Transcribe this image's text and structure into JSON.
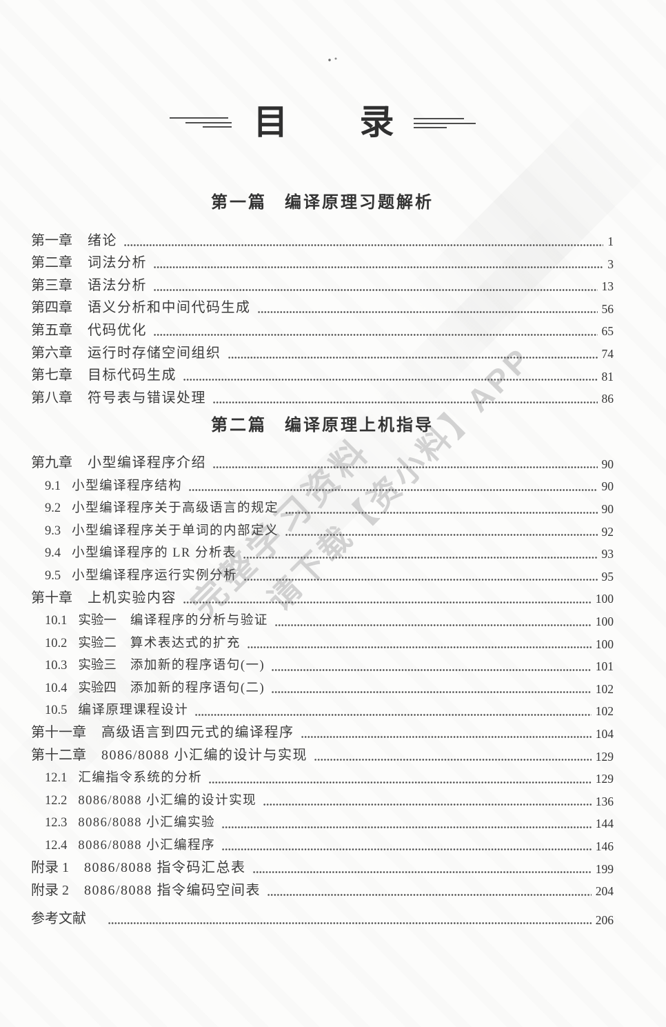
{
  "page": {
    "title_char1": "目",
    "title_char2": "录",
    "background_color": "#fcfcfb",
    "text_color": "#3c3c3c"
  },
  "watermark": {
    "line1": "完整学习资料",
    "line2": "请下载【资小料】APP",
    "color": "#d2d2d2"
  },
  "parts": [
    {
      "part_label": "第一篇",
      "part_title": "编译原理习题解析",
      "entries": [
        {
          "label": "第一章",
          "title": "绪论",
          "page": "1",
          "level": "chapter"
        },
        {
          "label": "第二章",
          "title": "词法分析",
          "page": "3",
          "level": "chapter"
        },
        {
          "label": "第三章",
          "title": "语法分析",
          "page": "13",
          "level": "chapter"
        },
        {
          "label": "第四章",
          "title": "语义分析和中间代码生成",
          "page": "56",
          "level": "chapter"
        },
        {
          "label": "第五章",
          "title": "代码优化",
          "page": "65",
          "level": "chapter"
        },
        {
          "label": "第六章",
          "title": "运行时存储空间组织",
          "page": "74",
          "level": "chapter"
        },
        {
          "label": "第七章",
          "title": "目标代码生成",
          "page": "81",
          "level": "chapter"
        },
        {
          "label": "第八章",
          "title": "符号表与错误处理",
          "page": "86",
          "level": "chapter"
        }
      ]
    },
    {
      "part_label": "第二篇",
      "part_title": "编译原理上机指导",
      "entries": [
        {
          "label": "第九章",
          "title": "小型编译程序介绍",
          "page": "90",
          "level": "chapter"
        },
        {
          "label": "9.1",
          "title": "小型编译程序结构",
          "page": "90",
          "level": "section"
        },
        {
          "label": "9.2",
          "title": "小型编译程序关于高级语言的规定",
          "page": "90",
          "level": "section"
        },
        {
          "label": "9.3",
          "title": "小型编译程序关于单词的内部定义",
          "page": "92",
          "level": "section"
        },
        {
          "label": "9.4",
          "title": "小型编译程序的 LR 分析表",
          "page": "93",
          "level": "section"
        },
        {
          "label": "9.5",
          "title": "小型编译程序运行实例分析",
          "page": "95",
          "level": "section"
        },
        {
          "label": "第十章",
          "title": "上机实验内容",
          "page": "100",
          "level": "chapter"
        },
        {
          "label": "10.1",
          "sublabel": "实验一",
          "title": "编译程序的分析与验证",
          "page": "100",
          "level": "section"
        },
        {
          "label": "10.2",
          "sublabel": "实验二",
          "title": "算术表达式的扩充",
          "page": "100",
          "level": "section"
        },
        {
          "label": "10.3",
          "sublabel": "实验三",
          "title": "添加新的程序语句(一)",
          "page": "101",
          "level": "section"
        },
        {
          "label": "10.4",
          "sublabel": "实验四",
          "title": "添加新的程序语句(二)",
          "page": "102",
          "level": "section"
        },
        {
          "label": "10.5",
          "title": "编译原理课程设计",
          "page": "102",
          "level": "section"
        },
        {
          "label": "第十一章",
          "title": "高级语言到四元式的编译程序",
          "page": "104",
          "level": "chapter"
        },
        {
          "label": "第十二章",
          "title": "8086/8088 小汇编的设计与实现",
          "page": "129",
          "level": "chapter"
        },
        {
          "label": "12.1",
          "title": "汇编指令系统的分析",
          "page": "129",
          "level": "section"
        },
        {
          "label": "12.2",
          "title": "8086/8088 小汇编的设计实现",
          "page": "136",
          "level": "section"
        },
        {
          "label": "12.3",
          "title": "8086/8088 小汇编实验",
          "page": "144",
          "level": "section"
        },
        {
          "label": "12.4",
          "title": "8086/8088 小汇编程序",
          "page": "146",
          "level": "section"
        },
        {
          "label": "附录 1",
          "title": "8086/8088 指令码汇总表",
          "page": "199",
          "level": "appendix"
        },
        {
          "label": "附录 2",
          "title": "8086/8088 指令编码空间表",
          "page": "204",
          "level": "appendix"
        },
        {
          "label": "参考文献",
          "title": "",
          "page": "206",
          "level": "reference"
        }
      ]
    }
  ]
}
